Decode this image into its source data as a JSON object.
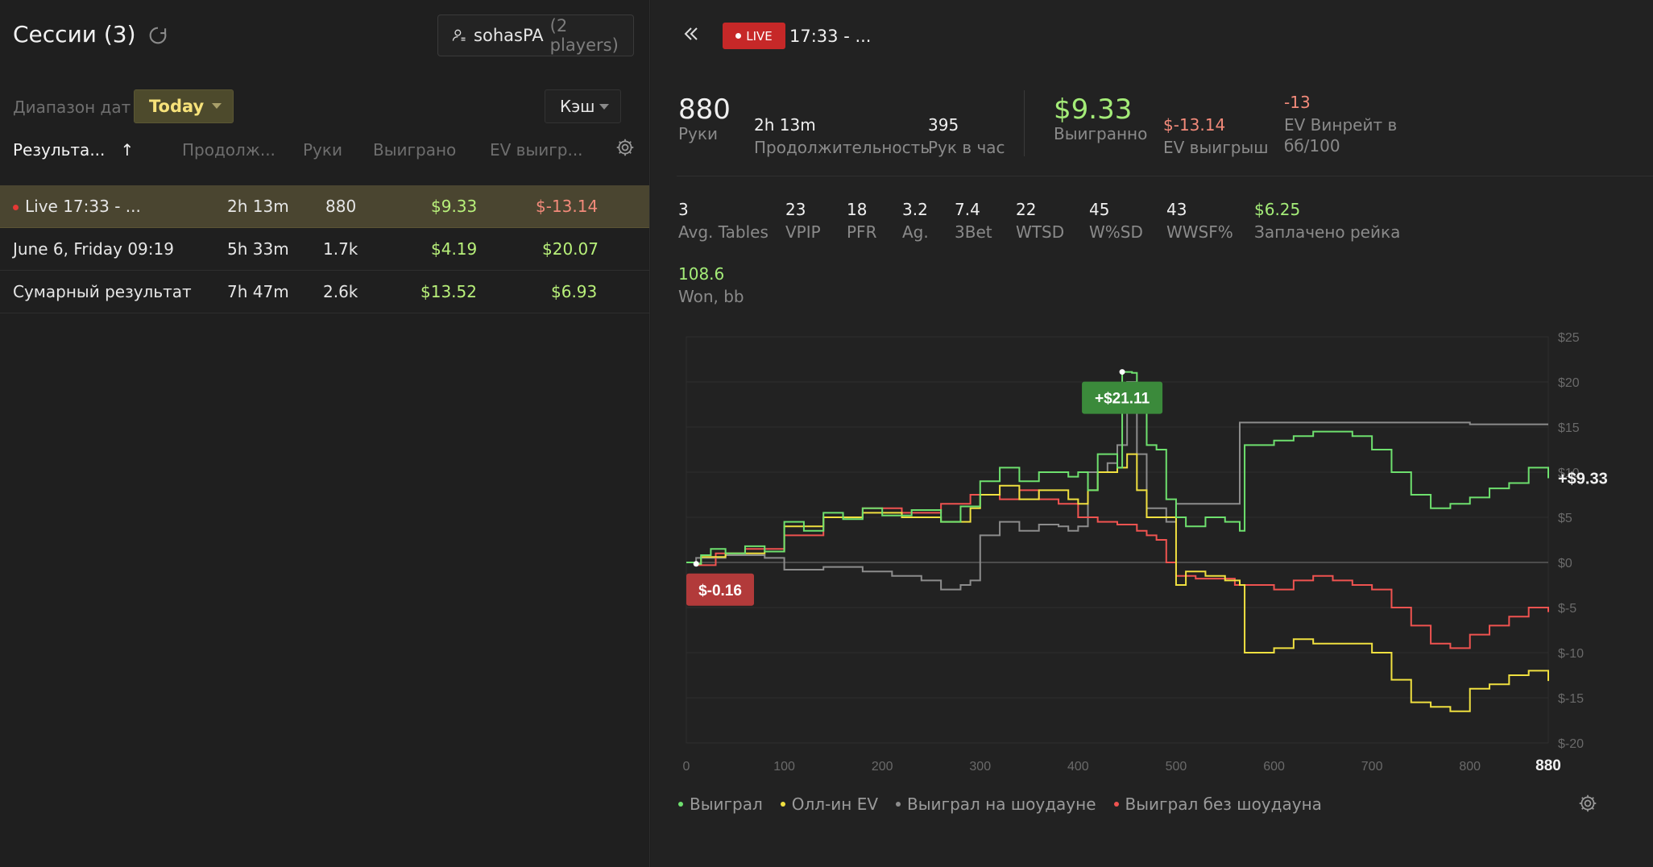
{
  "sessions": {
    "title": "Сессии (3)",
    "player_name": "sohasPA",
    "player_count": "(2 players)",
    "date_range_label": "Диапазон дат",
    "date_range_value": "Today",
    "game_type": "Кэш",
    "columns": [
      "Результа...",
      "Продолж...",
      "Руки",
      "Выиграно",
      "EV выигр..."
    ],
    "sort_arrow": "↑",
    "rows": [
      {
        "name": "Live 17:33 - ...",
        "duration": "2h 13m",
        "hands": "880",
        "won": "$9.33",
        "ev": "$-13.14",
        "live": true
      },
      {
        "name": "June 6, Friday 09:19",
        "duration": "5h 33m",
        "hands": "1.7k",
        "won": "$4.19",
        "ev": "$20.07"
      },
      {
        "name": "Сумарный результат",
        "duration": "7h 47m",
        "hands": "2.6k",
        "won": "$13.52",
        "ev": "$6.93"
      }
    ]
  },
  "detail": {
    "live_badge": "LIVE",
    "title": "17:33 - ...",
    "summary": [
      {
        "value": "880",
        "label": "Руки"
      },
      {
        "value": "2h 13m",
        "label": "Продолжительность"
      },
      {
        "value": "395",
        "label": "Рук в час"
      },
      {
        "value": "$9.33",
        "label": "Выигранно"
      },
      {
        "value": "$-13.14",
        "label": "EV выигрыш"
      },
      {
        "value": "-13",
        "label": "EV Винрейт в",
        "label2": "бб/100"
      }
    ],
    "stats": [
      {
        "value": "3",
        "label": "Avg. Tables"
      },
      {
        "value": "23",
        "label": "VPIP"
      },
      {
        "value": "18",
        "label": "PFR"
      },
      {
        "value": "3.2",
        "label": "Ag."
      },
      {
        "value": "7.4",
        "label": "3Bet"
      },
      {
        "value": "22",
        "label": "WTSD"
      },
      {
        "value": "45",
        "label": "W%SD"
      },
      {
        "value": "43",
        "label": "WWSF%"
      },
      {
        "value": "$6.25",
        "label": "Заплачено рейка"
      }
    ],
    "won_bb": {
      "value": "108.6",
      "label": "Won, bb"
    }
  },
  "chart_data": {
    "type": "line",
    "x_ticks": [
      "0",
      "100",
      "200",
      "300",
      "400",
      "500",
      "600",
      "700",
      "800",
      "880"
    ],
    "y_ticks": [
      "$25",
      "$20",
      "$15",
      "$10",
      "$5",
      "$0",
      "$-5",
      "$-10",
      "$-15",
      "$-20"
    ],
    "xlim": [
      0,
      880
    ],
    "ylim": [
      -20,
      25
    ],
    "max_label": "+$21.11",
    "min_label": "$-0.16",
    "end_label": "+$9.33",
    "colors": {
      "won": "#6ee06e",
      "allin": "#f0e040",
      "sd": "#8c8c8c",
      "nonsd": "#ef5350"
    },
    "series": [
      {
        "key": "won",
        "name": "Выиграл",
        "points": [
          [
            0,
            0
          ],
          [
            10,
            -0.16
          ],
          [
            15,
            0.8
          ],
          [
            25,
            1.5
          ],
          [
            40,
            1
          ],
          [
            60,
            1.8
          ],
          [
            80,
            1.2
          ],
          [
            100,
            4.5
          ],
          [
            120,
            3.5
          ],
          [
            140,
            5.5
          ],
          [
            160,
            4.8
          ],
          [
            180,
            6
          ],
          [
            200,
            5.2
          ],
          [
            230,
            5.8
          ],
          [
            260,
            4.5
          ],
          [
            280,
            6.2
          ],
          [
            300,
            9
          ],
          [
            320,
            10.5
          ],
          [
            340,
            9
          ],
          [
            360,
            10
          ],
          [
            390,
            9.5
          ],
          [
            400,
            10
          ],
          [
            410,
            8
          ],
          [
            420,
            12
          ],
          [
            440,
            10.5
          ],
          [
            445,
            21.11
          ],
          [
            455,
            21
          ],
          [
            460,
            17
          ],
          [
            470,
            13
          ],
          [
            480,
            12.5
          ],
          [
            490,
            7
          ],
          [
            500,
            5
          ],
          [
            510,
            4
          ],
          [
            530,
            5
          ],
          [
            550,
            4.5
          ],
          [
            565,
            3.5
          ],
          [
            570,
            13
          ],
          [
            600,
            13.5
          ],
          [
            620,
            14
          ],
          [
            640,
            14.5
          ],
          [
            680,
            14
          ],
          [
            700,
            12.5
          ],
          [
            720,
            10
          ],
          [
            740,
            7.5
          ],
          [
            760,
            6
          ],
          [
            780,
            6.5
          ],
          [
            800,
            7.2
          ],
          [
            820,
            8.2
          ],
          [
            840,
            8.8
          ],
          [
            860,
            10.5
          ],
          [
            880,
            9.33
          ]
        ]
      },
      {
        "key": "allin",
        "name": "Олл-ин EV",
        "points": [
          [
            0,
            0
          ],
          [
            10,
            -0.16
          ],
          [
            15,
            0.6
          ],
          [
            40,
            1
          ],
          [
            80,
            1.2
          ],
          [
            100,
            4
          ],
          [
            140,
            5
          ],
          [
            180,
            5.5
          ],
          [
            220,
            5
          ],
          [
            260,
            4.5
          ],
          [
            290,
            6
          ],
          [
            300,
            7.5
          ],
          [
            320,
            8.5
          ],
          [
            340,
            7
          ],
          [
            360,
            8
          ],
          [
            390,
            7
          ],
          [
            400,
            6.5
          ],
          [
            410,
            8
          ],
          [
            420,
            10
          ],
          [
            440,
            10.5
          ],
          [
            450,
            12
          ],
          [
            460,
            8
          ],
          [
            470,
            5
          ],
          [
            490,
            5
          ],
          [
            500,
            -2.5
          ],
          [
            510,
            -1
          ],
          [
            530,
            -1.5
          ],
          [
            550,
            -2
          ],
          [
            565,
            -2.5
          ],
          [
            570,
            -10
          ],
          [
            600,
            -9.5
          ],
          [
            620,
            -8.5
          ],
          [
            640,
            -9
          ],
          [
            680,
            -9
          ],
          [
            700,
            -10
          ],
          [
            720,
            -13
          ],
          [
            740,
            -15.5
          ],
          [
            760,
            -16
          ],
          [
            780,
            -16.5
          ],
          [
            800,
            -14
          ],
          [
            820,
            -13.5
          ],
          [
            840,
            -12.5
          ],
          [
            860,
            -12
          ],
          [
            880,
            -13.14
          ]
        ]
      },
      {
        "key": "sd",
        "name": "Выиграл на шоудауне",
        "points": [
          [
            0,
            0
          ],
          [
            10,
            0.5
          ],
          [
            40,
            0.8
          ],
          [
            80,
            0.5
          ],
          [
            100,
            -0.8
          ],
          [
            140,
            -0.5
          ],
          [
            180,
            -1
          ],
          [
            210,
            -1.5
          ],
          [
            240,
            -2
          ],
          [
            260,
            -3
          ],
          [
            280,
            -2.5
          ],
          [
            290,
            -2
          ],
          [
            300,
            3
          ],
          [
            320,
            4.5
          ],
          [
            340,
            3.5
          ],
          [
            360,
            4.2
          ],
          [
            380,
            4
          ],
          [
            390,
            3.5
          ],
          [
            400,
            4
          ],
          [
            410,
            10
          ],
          [
            430,
            11
          ],
          [
            440,
            13
          ],
          [
            450,
            20
          ],
          [
            460,
            12
          ],
          [
            470,
            6
          ],
          [
            480,
            6
          ],
          [
            490,
            4.5
          ],
          [
            500,
            6.5
          ],
          [
            530,
            6.5
          ],
          [
            560,
            6.5
          ],
          [
            565,
            15.5
          ],
          [
            600,
            15.5
          ],
          [
            700,
            15.5
          ],
          [
            800,
            15.3
          ],
          [
            880,
            15.3
          ]
        ]
      },
      {
        "key": "nonsd",
        "name": "Выиграл без шоудауна",
        "points": [
          [
            0,
            0
          ],
          [
            10,
            -0.3
          ],
          [
            30,
            1
          ],
          [
            60,
            1.5
          ],
          [
            100,
            3
          ],
          [
            140,
            5
          ],
          [
            180,
            6
          ],
          [
            220,
            5.5
          ],
          [
            260,
            6.5
          ],
          [
            290,
            7.5
          ],
          [
            320,
            7
          ],
          [
            340,
            8
          ],
          [
            360,
            7
          ],
          [
            380,
            6.5
          ],
          [
            400,
            5
          ],
          [
            420,
            4.5
          ],
          [
            440,
            4.2
          ],
          [
            460,
            3.5
          ],
          [
            470,
            3
          ],
          [
            480,
            2.5
          ],
          [
            490,
            0
          ],
          [
            500,
            -1.5
          ],
          [
            520,
            -1.8
          ],
          [
            560,
            -2.5
          ],
          [
            600,
            -3
          ],
          [
            620,
            -2
          ],
          [
            640,
            -1.5
          ],
          [
            660,
            -2
          ],
          [
            680,
            -2.5
          ],
          [
            700,
            -3
          ],
          [
            720,
            -5
          ],
          [
            740,
            -7
          ],
          [
            760,
            -9
          ],
          [
            780,
            -9.5
          ],
          [
            800,
            -8
          ],
          [
            820,
            -7
          ],
          [
            840,
            -6
          ],
          [
            860,
            -5
          ],
          [
            880,
            -5.5
          ]
        ]
      }
    ]
  }
}
